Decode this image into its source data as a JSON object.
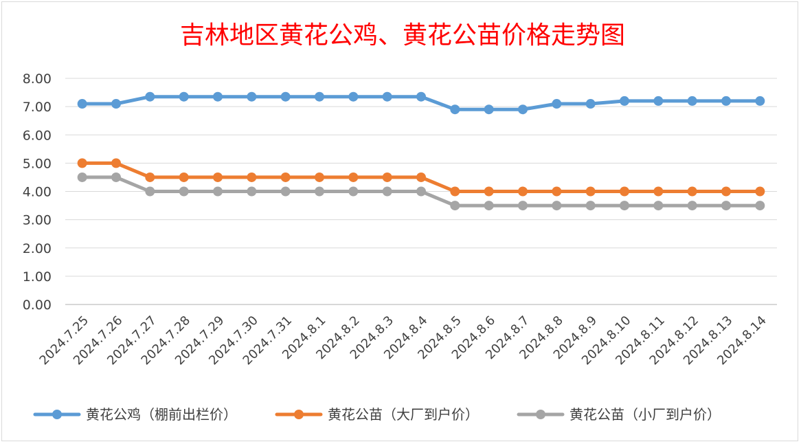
{
  "chart_data": {
    "type": "line",
    "title": "吉林地区黄花公鸡、黄花公苗价格走势图",
    "xlabel": "",
    "ylabel": "",
    "ylim": [
      0,
      8
    ],
    "y_ticks": [
      "0.00",
      "1.00",
      "2.00",
      "3.00",
      "4.00",
      "5.00",
      "6.00",
      "7.00",
      "8.00"
    ],
    "grid": true,
    "legend_position": "bottom",
    "categories": [
      "2024.7.25",
      "2024.7.26",
      "2024.7.27",
      "2024.7.28",
      "2024.7.29",
      "2024.7.30",
      "2024.7.31",
      "2024.8.1",
      "2024.8.2",
      "2024.8.3",
      "2024.8.4",
      "2024.8.5",
      "2024.8.6",
      "2024.8.7",
      "2024.8.8",
      "2024.8.9",
      "2024.8.10",
      "2024.8.11",
      "2024.8.12",
      "2024.8.13",
      "2024.8.14"
    ],
    "series": [
      {
        "name": "黄花公鸡（棚前出栏价）",
        "color": "#5b9bd5",
        "values": [
          7.1,
          7.1,
          7.35,
          7.35,
          7.35,
          7.35,
          7.35,
          7.35,
          7.35,
          7.35,
          7.35,
          6.9,
          6.9,
          6.9,
          7.1,
          7.1,
          7.2,
          7.2,
          7.2,
          7.2,
          7.2
        ]
      },
      {
        "name": "黄花公苗（大厂到户价）",
        "color": "#ed7d31",
        "values": [
          5.0,
          5.0,
          4.5,
          4.5,
          4.5,
          4.5,
          4.5,
          4.5,
          4.5,
          4.5,
          4.5,
          4.0,
          4.0,
          4.0,
          4.0,
          4.0,
          4.0,
          4.0,
          4.0,
          4.0,
          4.0
        ]
      },
      {
        "name": "黄花公苗（小厂到户价）",
        "color": "#a5a5a5",
        "values": [
          4.5,
          4.5,
          4.0,
          4.0,
          4.0,
          4.0,
          4.0,
          4.0,
          4.0,
          4.0,
          4.0,
          3.5,
          3.5,
          3.5,
          3.5,
          3.5,
          3.5,
          3.5,
          3.5,
          3.5,
          3.5
        ]
      }
    ]
  }
}
